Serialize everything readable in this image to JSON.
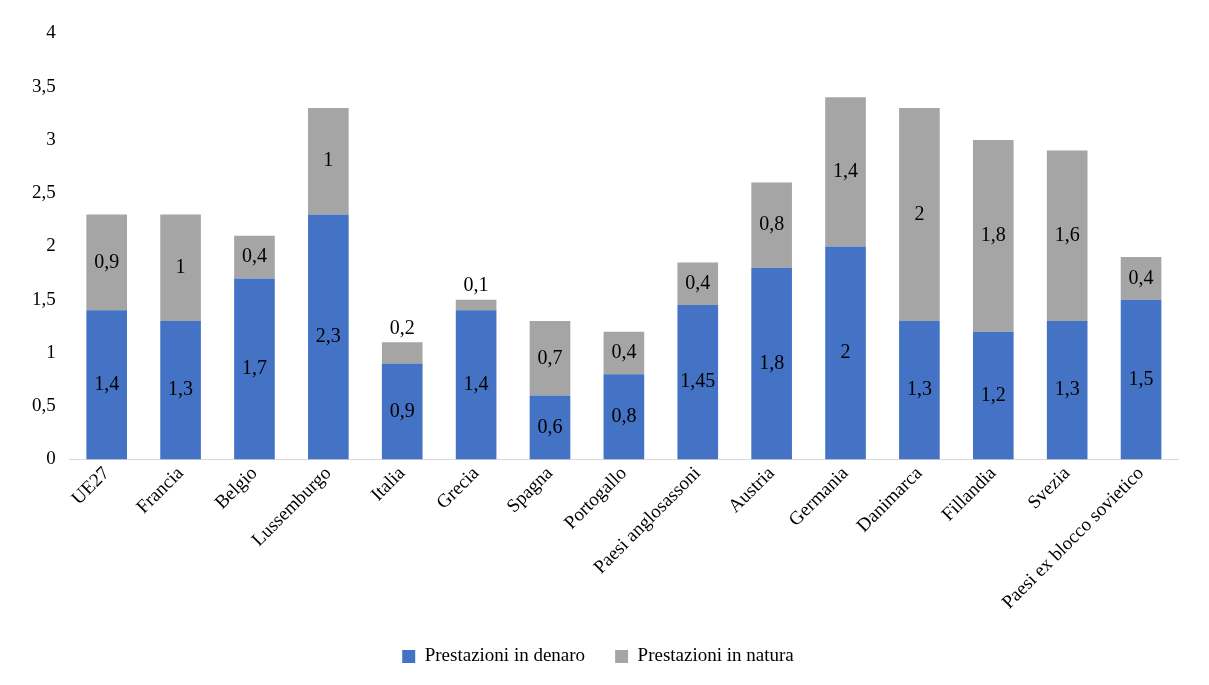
{
  "chart_data": {
    "type": "bar",
    "stacked": true,
    "categories": [
      "UE27",
      "Francia",
      "Belgio",
      "Lussemburgo",
      "Italia",
      "Grecia",
      "Spagna",
      "Portogallo",
      "Paesi anglosassoni",
      "Austria",
      "Germania",
      "Danimarca",
      "Fillandia",
      "Svezia",
      "Paesi ex blocco sovietico"
    ],
    "series": [
      {
        "name": "Prestazioni in denaro",
        "color": "#4472c4",
        "values": [
          1.4,
          1.3,
          1.7,
          2.3,
          0.9,
          1.4,
          0.6,
          0.8,
          1.45,
          1.8,
          2,
          1.3,
          1.2,
          1.3,
          1.5
        ],
        "value_labels": [
          "1,4",
          "1,3",
          "1,7",
          "2,3",
          "0,9",
          "1,4",
          "0,6",
          "0,8",
          "1,45",
          "1,8",
          "2",
          "1,3",
          "1,2",
          "1,3",
          "1,5"
        ]
      },
      {
        "name": "Prestazioni in natura",
        "color": "#a5a5a5",
        "values": [
          0.9,
          1,
          0.4,
          1,
          0.2,
          0.1,
          0.7,
          0.4,
          0.4,
          0.8,
          1.4,
          2,
          1.8,
          1.6,
          0.4
        ],
        "value_labels": [
          "0,9",
          "1",
          "0,4",
          "1",
          "0,2",
          "0,1",
          "0,7",
          "0,4",
          "0,4",
          "0,8",
          "1,4",
          "2",
          "1,8",
          "1,6",
          "0,4"
        ]
      }
    ],
    "ylim": [
      0,
      4
    ],
    "yticks": [
      0,
      {
        "value": 0.5,
        "label": "0,5"
      },
      1,
      {
        "value": 1.5,
        "label": "1,5"
      },
      2,
      {
        "value": 2.5,
        "label": "2,5"
      },
      3,
      {
        "value": 3.5,
        "label": "3,5"
      },
      4
    ],
    "grid": false,
    "legend": "bottom"
  }
}
